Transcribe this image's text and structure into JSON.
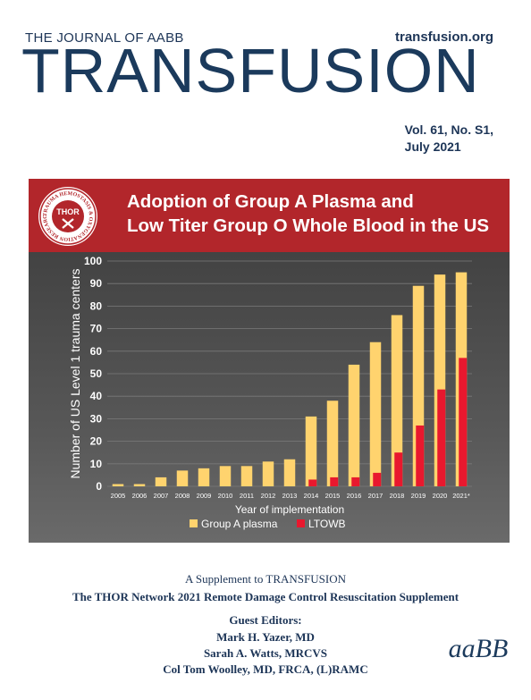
{
  "header": {
    "journal_of": "THE JOURNAL OF AABB",
    "website": "transfusion.org",
    "masthead": "TRANSFUSION",
    "volume": "Vol. 61, No. S1,",
    "date": "July 2021"
  },
  "banner": {
    "title_line1": "Adoption of Group A Plasma and",
    "title_line2": "Low Titer Group O Whole Blood in the US",
    "seal_center": "THOR",
    "seal_ring": "TRAUMA HEMOSTASIS & OXYGENATION RESEARCH"
  },
  "colors": {
    "group_a": "#ffd36e",
    "ltowb": "#e8182e",
    "banner": "#b2262b",
    "navy": "#1d3557"
  },
  "chart_data": {
    "type": "bar",
    "categories": [
      "2005",
      "2006",
      "2007",
      "2008",
      "2009",
      "2010",
      "2011",
      "2012",
      "2013",
      "2014",
      "2015",
      "2016",
      "2017",
      "2018",
      "2019",
      "2020",
      "2021*"
    ],
    "series": [
      {
        "name": "Group A plasma",
        "values": [
          1,
          1,
          4,
          7,
          8,
          9,
          9,
          11,
          12,
          31,
          38,
          54,
          64,
          76,
          89,
          94,
          95
        ]
      },
      {
        "name": "LTOWB",
        "values": [
          0,
          0,
          0,
          0,
          0,
          0,
          0,
          0,
          0,
          3,
          4,
          4,
          6,
          15,
          27,
          43,
          57
        ]
      }
    ],
    "ylim": [
      0,
      100
    ],
    "yticks": [
      "0",
      "10",
      "20",
      "30",
      "40",
      "50",
      "60",
      "70",
      "80",
      "90",
      "100"
    ],
    "xlabel": "Year of implementation",
    "ylabel": "Number of US Level 1 trauma centers",
    "grid": true,
    "legend_position": "bottom"
  },
  "footer": {
    "supplement": "A Supplement to TRANSFUSION",
    "subtitle": "The THOR Network 2021 Remote Damage Control Resuscitation Supplement",
    "editors_heading": "Guest Editors:",
    "editors": [
      "Mark H. Yazer, MD",
      "Sarah A. Watts, MRCVS",
      "Col Tom Woolley, MD, FRCA, (L)RAMC"
    ],
    "logo_text": "aaBB"
  }
}
